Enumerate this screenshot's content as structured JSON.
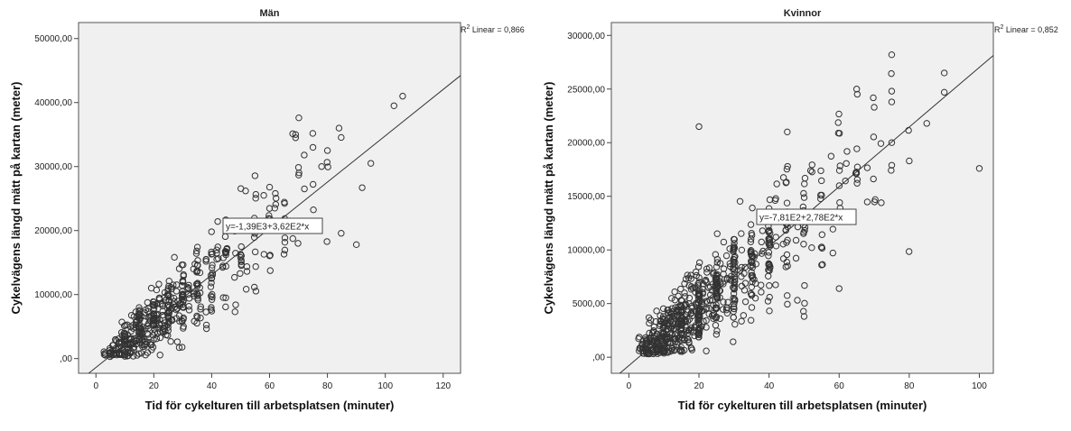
{
  "chart_data": [
    {
      "type": "scatter",
      "title": "Män",
      "xlabel": "Tid för cykelturen till arbetsplatsen (minuter)",
      "ylabel": "Cykelvägens längd mätt på kartan (meter)",
      "xlim": [
        -6,
        126
      ],
      "ylim": [
        -2300,
        52500
      ],
      "xticks": [
        "0",
        "20",
        "40",
        "60",
        "80",
        "100",
        "120"
      ],
      "yticks": [
        ",00",
        "10000,00",
        "20000,00",
        "30000,00",
        "40000,00",
        "50000,00"
      ],
      "r2_prefix": "R",
      "r2_sup": "2",
      "r2_text": " Linear = 0,866",
      "equation": "y=-1,39E3+3,62E2*x",
      "fit": {
        "intercept": -1390,
        "slope": 362
      },
      "notable_points": [
        [
          103,
          39500
        ],
        [
          106,
          41000
        ],
        [
          75,
          33000
        ],
        [
          78,
          30000
        ],
        [
          80,
          32500
        ],
        [
          84,
          36000
        ],
        [
          95,
          30500
        ],
        [
          90,
          17800
        ],
        [
          92,
          26700
        ],
        [
          69,
          35000
        ],
        [
          69,
          34500
        ],
        [
          62,
          25800
        ],
        [
          58,
          25500
        ]
      ]
    },
    {
      "type": "scatter",
      "title": "Kvinnor",
      "xlabel": "Tid för cykelturen till arbetsplatsen (minuter)",
      "ylabel": "Cykelvägens längd mätt på kartan (meter)",
      "xlim": [
        -5,
        104
      ],
      "ylim": [
        -1500,
        31200
      ],
      "xticks": [
        "0",
        "20",
        "40",
        "60",
        "80",
        "100"
      ],
      "yticks": [
        ",00",
        "5000,00",
        "10000,00",
        "15000,00",
        "20000,00",
        "25000,00",
        "30000,00"
      ],
      "r2_prefix": "R",
      "r2_sup": "2",
      "r2_text": " Linear = 0,852",
      "equation": "y=-7,81E2+2,78E2*x",
      "fit": {
        "intercept": -781,
        "slope": 278
      },
      "notable_points": [
        [
          20,
          21500
        ],
        [
          75,
          28200
        ],
        [
          90,
          26500
        ],
        [
          90,
          24700
        ],
        [
          100,
          17600
        ],
        [
          85,
          21800
        ],
        [
          65,
          25000
        ],
        [
          75,
          24800
        ],
        [
          75,
          23800
        ],
        [
          75,
          20000
        ],
        [
          70,
          23300
        ],
        [
          60,
          6400
        ],
        [
          50,
          3800
        ],
        [
          55,
          8600
        ],
        [
          80,
          18300
        ]
      ]
    }
  ]
}
